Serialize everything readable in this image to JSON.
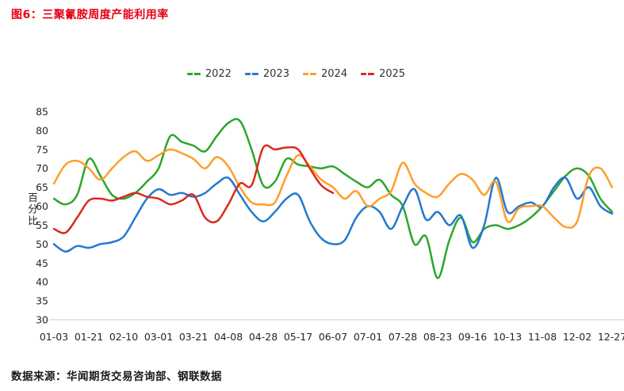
{
  "title": "图6：三聚氰胺周度产能利用率",
  "source": "数据来源：华闻期货交易咨询部、钢联数据",
  "colors": {
    "title": "#e60012",
    "axis_text": "#262626",
    "axis_line": "#c9c9c9"
  },
  "chart_data": {
    "type": "line",
    "title": "三聚氰胺周度产能利用率",
    "ylabel": "百分比",
    "ylim": [
      30,
      85
    ],
    "ytick_step": 5,
    "grid": false,
    "legend_position": "top",
    "x_tick_labels": [
      "01-03",
      "01-21",
      "02-10",
      "03-01",
      "03-21",
      "04-08",
      "04-28",
      "05-17",
      "06-07",
      "07-01",
      "07-28",
      "08-23",
      "09-16",
      "10-13",
      "11-08",
      "12-02",
      "12-27"
    ],
    "ticks_every": 3,
    "n_points": 49,
    "series": [
      {
        "name": "2022",
        "color": "#2ca62c",
        "values": [
          62,
          60.5,
          63,
          72.5,
          68,
          63,
          62,
          63.5,
          66.5,
          70,
          78.5,
          77,
          76,
          74.5,
          78.5,
          82,
          82.5,
          75,
          65.5,
          66.5,
          72.5,
          71,
          70.5,
          70,
          70.5,
          68.5,
          66.5,
          65,
          67,
          63,
          60,
          50,
          52,
          41,
          51,
          57,
          50.5,
          54,
          55,
          54,
          55,
          57,
          60,
          64,
          68,
          70,
          68,
          62,
          58.5
        ]
      },
      {
        "name": "2023",
        "color": "#2479d0",
        "values": [
          50,
          48,
          49.5,
          49,
          50,
          50.5,
          52,
          57,
          62,
          64.5,
          63,
          63.5,
          62.5,
          63.5,
          66,
          67.5,
          63,
          58.5,
          56,
          58.5,
          62,
          63,
          56,
          51.5,
          50,
          51,
          57,
          60,
          58.5,
          54,
          60,
          64.5,
          56.5,
          58.5,
          55,
          57.5,
          49,
          55,
          67.5,
          58.5,
          60,
          61,
          60,
          65,
          67.5,
          62,
          65,
          60,
          58
        ]
      },
      {
        "name": "2024",
        "color": "#ff9e2a",
        "values": [
          66,
          71,
          72,
          70,
          67,
          70,
          73,
          74.5,
          72,
          73.5,
          75,
          74,
          72.5,
          70,
          73,
          70.5,
          65,
          61,
          60.5,
          61,
          68,
          73.5,
          70.5,
          67,
          65,
          62,
          64,
          60,
          62,
          64,
          71.5,
          66,
          63.5,
          62.5,
          66,
          68.5,
          67,
          63,
          66.5,
          56,
          59.5,
          60,
          60,
          57,
          54.5,
          56,
          68,
          70,
          65
        ]
      },
      {
        "name": "2025",
        "color": "#dc291e",
        "values": [
          54,
          53,
          57,
          61.5,
          62,
          61.5,
          62.5,
          63.5,
          62.5,
          62,
          60.5,
          61.5,
          63,
          57,
          56,
          60.5,
          66,
          65.5,
          75.5,
          75,
          75.5,
          75,
          70,
          65.5,
          63.5
        ]
      }
    ]
  }
}
